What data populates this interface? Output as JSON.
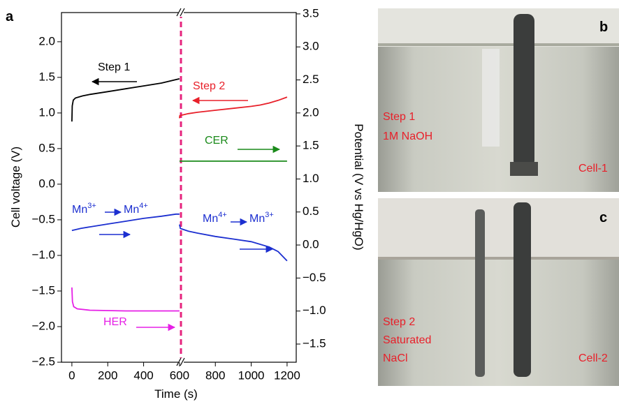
{
  "chart_data": {
    "type": "line",
    "panel_label": "a",
    "x_label": "Time (s)",
    "y_label": "Cell voltage (V)",
    "y2_label": "Potential (V vs Hg/HgO)",
    "xlim": [
      -58,
      1251
    ],
    "ylim": [
      -2.5,
      2.41
    ],
    "y2lim": [
      -1.775,
      3.52
    ],
    "xticks": [
      0,
      200,
      400,
      600,
      800,
      1000,
      1200
    ],
    "yticks": [
      {
        "value": -2.5,
        "label": "−2.5"
      },
      {
        "value": -2,
        "label": "−2.0"
      },
      {
        "value": -1.5,
        "label": "−1.5"
      },
      {
        "value": -1,
        "label": "−1.0"
      },
      {
        "value": -0.5,
        "label": "−0.5"
      },
      {
        "value": 0,
        "label": "0.0"
      },
      {
        "value": 0.5,
        "label": "0.5"
      },
      {
        "value": 1,
        "label": "1.0"
      },
      {
        "value": 1.5,
        "label": "1.5"
      },
      {
        "value": 2,
        "label": "2.0"
      }
    ],
    "y2ticks": [
      {
        "value": -1.5,
        "label": "−1.5"
      },
      {
        "value": -1,
        "label": "−1.0"
      },
      {
        "value": -0.5,
        "label": "−0.5"
      },
      {
        "value": 0,
        "label": "0.0"
      },
      {
        "value": 0.5,
        "label": "0.5"
      },
      {
        "value": 1,
        "label": "1.0"
      },
      {
        "value": 1.5,
        "label": "1.5"
      },
      {
        "value": 2,
        "label": "2.0"
      },
      {
        "value": 2.5,
        "label": "2.5"
      },
      {
        "value": 3,
        "label": "3.0"
      },
      {
        "value": 3.5,
        "label": "3.5"
      }
    ],
    "series": [
      {
        "name": "Step 1",
        "color": "#000000",
        "axis": "y",
        "x": [
          0,
          2,
          8,
          20,
          60,
          100,
          200,
          300,
          400,
          500,
          600
        ],
        "values": [
          0.88,
          1.1,
          1.18,
          1.21,
          1.24,
          1.26,
          1.3,
          1.34,
          1.38,
          1.42,
          1.48
        ]
      },
      {
        "name": "Step 2",
        "color": "#e8202a",
        "axis": "y2",
        "x": [
          600,
          602,
          650,
          700,
          800,
          900,
          1000,
          1050,
          1100,
          1150,
          1200
        ],
        "values": [
          1.92,
          1.96,
          1.99,
          2.01,
          2.04,
          2.07,
          2.1,
          2.12,
          2.15,
          2.19,
          2.24
        ]
      },
      {
        "name": "CER",
        "color": "#1a8a1a",
        "axis": "y2",
        "x": [
          600,
          1200
        ],
        "values": [
          1.27,
          1.27
        ]
      },
      {
        "name": "HER",
        "color": "#e620e6",
        "axis": "y",
        "x": [
          0,
          3,
          10,
          30,
          100,
          300,
          600
        ],
        "values": [
          -1.45,
          -1.65,
          -1.72,
          -1.75,
          -1.77,
          -1.78,
          -1.78
        ]
      },
      {
        "color": "#1c2fd0",
        "axis": "y",
        "x": [
          0,
          50,
          100,
          200,
          300,
          400,
          500,
          580,
          600
        ],
        "values": [
          -0.65,
          -0.62,
          -0.6,
          -0.56,
          -0.52,
          -0.48,
          -0.45,
          -0.42,
          -0.42
        ]
      },
      {
        "color": "#1c2fd0",
        "axis": "y2",
        "x": [
          600,
          605,
          650,
          700,
          800,
          900,
          1000,
          1100,
          1150,
          1200
        ],
        "values": [
          0.31,
          0.25,
          0.21,
          0.18,
          0.13,
          0.09,
          0.05,
          -0.03,
          -0.1,
          -0.24
        ]
      }
    ],
    "annotations": [
      {
        "parts": [
          "Mn",
          "3+",
          "Mn",
          "4+"
        ],
        "color": "#1c2fd0"
      },
      {
        "parts": [
          "Mn",
          "4+",
          "Mn",
          "3+"
        ],
        "color": "#1c2fd0"
      }
    ]
  },
  "photos": [
    {
      "panel_label": "b",
      "texts": [
        "Step 1",
        "1M NaOH",
        "Cell-1"
      ]
    },
    {
      "panel_label": "c",
      "texts": [
        "Step 2",
        "Saturated",
        "NaCl",
        "Cell-2"
      ]
    }
  ]
}
